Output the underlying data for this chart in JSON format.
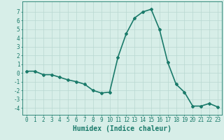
{
  "x": [
    0,
    1,
    2,
    3,
    4,
    5,
    6,
    7,
    8,
    9,
    10,
    11,
    12,
    13,
    14,
    15,
    16,
    17,
    18,
    19,
    20,
    21,
    22,
    23
  ],
  "y": [
    0.2,
    0.2,
    -0.2,
    -0.2,
    -0.5,
    -0.8,
    -1.0,
    -1.3,
    -2.0,
    -2.3,
    -2.2,
    1.8,
    4.5,
    6.3,
    7.0,
    7.3,
    5.0,
    1.2,
    -1.3,
    -2.2,
    -3.8,
    -3.8,
    -3.5,
    -3.9
  ],
  "line_color": "#1a7a6a",
  "marker": "D",
  "marker_size": 2,
  "bg_color": "#d7eee8",
  "grid_color": "#b8d8d0",
  "xlabel": "Humidex (Indice chaleur)",
  "xlim": [
    -0.5,
    23.5
  ],
  "ylim": [
    -4.8,
    8.2
  ],
  "yticks": [
    -4,
    -3,
    -2,
    -1,
    0,
    1,
    2,
    3,
    4,
    5,
    6,
    7
  ],
  "xticks": [
    0,
    1,
    2,
    3,
    4,
    5,
    6,
    7,
    8,
    9,
    10,
    11,
    12,
    13,
    14,
    15,
    16,
    17,
    18,
    19,
    20,
    21,
    22,
    23
  ],
  "axis_color": "#1a7a6a",
  "tick_color": "#1a7a6a",
  "label_color": "#1a7a6a",
  "xlabel_fontsize": 7,
  "tick_fontsize": 5.5,
  "linewidth": 1.2
}
